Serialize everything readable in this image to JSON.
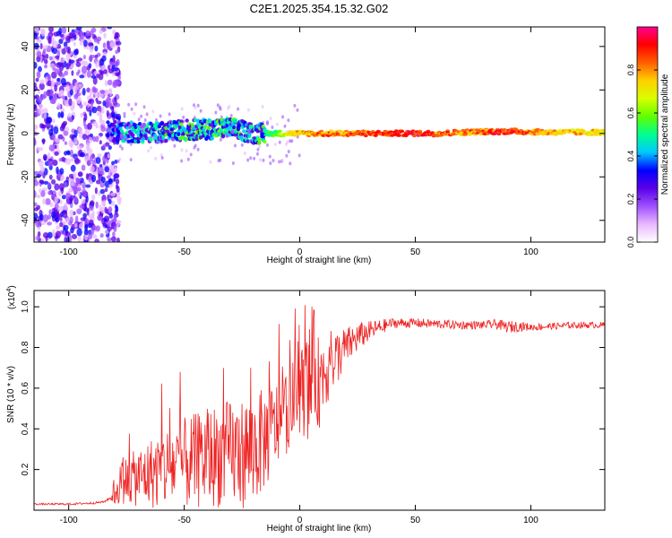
{
  "title": "C2E1.2025.354.15.32.G02",
  "chart_data": [
    {
      "type": "heatmap",
      "name": "spectrogram",
      "xlabel": "Height of straight line (km)",
      "ylabel": "Frequency (Hz)",
      "xlim": [
        -115,
        132
      ],
      "ylim": [
        -50,
        49
      ],
      "xticks": [
        -100,
        -50,
        0,
        50,
        100
      ],
      "yticks": [
        -40,
        -20,
        0,
        20,
        40
      ],
      "colorbar": {
        "label": "Normalized spectral amplitude",
        "range": [
          0,
          1
        ],
        "ticks": [
          "0.0",
          "0.2",
          "0.4",
          "0.6",
          "0.8"
        ],
        "colors": [
          "#ffffff",
          "#e9b8ff",
          "#a050ff",
          "#5a00e6",
          "#0000ff",
          "#00c8ff",
          "#00ff90",
          "#60ff00",
          "#d8ff00",
          "#ffd000",
          "#ff6000",
          "#ff0000",
          "#ff0090"
        ]
      },
      "trace_points": [
        {
          "x": -82,
          "f": 1.0,
          "amp": 0.35
        },
        {
          "x": -70,
          "f": 0.5,
          "amp": 0.45
        },
        {
          "x": -60,
          "f": 0.5,
          "amp": 0.45
        },
        {
          "x": -50,
          "f": 1.5,
          "amp": 0.5
        },
        {
          "x": -40,
          "f": 2.0,
          "amp": 0.55
        },
        {
          "x": -30,
          "f": 2.5,
          "amp": 0.5
        },
        {
          "x": -20,
          "f": 0.0,
          "amp": 0.45
        },
        {
          "x": -10,
          "f": 0.0,
          "amp": 0.6
        },
        {
          "x": 0,
          "f": 0.0,
          "amp": 0.8
        },
        {
          "x": 10,
          "f": 0.0,
          "amp": 0.85
        },
        {
          "x": 30,
          "f": 0.0,
          "amp": 0.9
        },
        {
          "x": 50,
          "f": 0.0,
          "amp": 0.95
        },
        {
          "x": 60,
          "f": 0.0,
          "amp": 0.92
        },
        {
          "x": 70,
          "f": 0.5,
          "amp": 0.85
        },
        {
          "x": 90,
          "f": 1.0,
          "amp": 0.95
        },
        {
          "x": 110,
          "f": 0.5,
          "amp": 0.8
        },
        {
          "x": 132,
          "f": 0.5,
          "amp": 0.75
        }
      ]
    },
    {
      "type": "line",
      "name": "snr",
      "xlabel": "Height of straight line (km)",
      "ylabel": "SNR (10 * v/v)",
      "multiplier_label": "(x10",
      "multiplier_exp": "4",
      "xlim": [
        -115,
        132
      ],
      "ylim": [
        0,
        1.08
      ],
      "xticks": [
        -100,
        -50,
        0,
        50,
        100
      ],
      "yticks": [
        0.2,
        0.4,
        0.6,
        0.8,
        1.0
      ],
      "ytick_labels": [
        "0.2",
        "0.4",
        "0.6",
        "0.8",
        "1.0"
      ],
      "color": "#ee2222",
      "series": [
        {
          "name": "SNR",
          "x": [
            -115,
            -100,
            -90,
            -85,
            -82,
            -78,
            -75,
            -70,
            -65,
            -60,
            -55,
            -50,
            -45,
            -40,
            -35,
            -30,
            -25,
            -20,
            -15,
            -10,
            -5,
            0,
            2,
            5,
            6,
            8,
            10,
            15,
            20,
            25,
            30,
            35,
            40,
            50,
            60,
            70,
            80,
            85,
            90,
            95,
            100,
            110,
            120,
            132
          ],
          "values": [
            0.03,
            0.03,
            0.035,
            0.04,
            0.06,
            0.13,
            0.15,
            0.16,
            0.18,
            0.2,
            0.22,
            0.23,
            0.24,
            0.26,
            0.27,
            0.28,
            0.28,
            0.3,
            0.35,
            0.42,
            0.5,
            0.58,
            0.6,
            0.63,
            0.72,
            0.62,
            0.68,
            0.74,
            0.8,
            0.85,
            0.88,
            0.9,
            0.92,
            0.92,
            0.915,
            0.91,
            0.91,
            0.915,
            0.9,
            0.905,
            0.9,
            0.905,
            0.91,
            0.91
          ]
        }
      ],
      "noise_profile": {
        "x": [
          -115,
          -82,
          -80,
          -60,
          -40,
          -20,
          -10,
          0,
          5,
          10,
          20,
          30,
          40,
          80,
          92,
          100,
          132
        ],
        "amplitude": [
          0.004,
          0.006,
          0.09,
          0.2,
          0.25,
          0.28,
          0.22,
          0.2,
          0.3,
          0.2,
          0.1,
          0.05,
          0.025,
          0.02,
          0.03,
          0.018,
          0.015
        ]
      }
    }
  ]
}
